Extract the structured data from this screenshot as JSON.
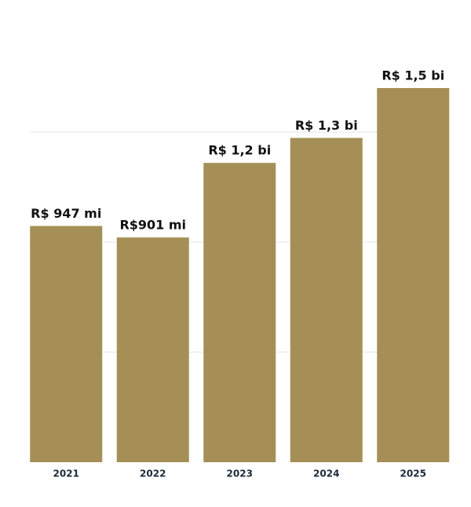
{
  "chart_data": {
    "type": "bar",
    "categories": [
      "2021",
      "2022",
      "2023",
      "2024",
      "2025"
    ],
    "values": [
      947,
      901,
      1200,
      1300,
      1500
    ],
    "value_labels": [
      "R$ 947 mi",
      "R$901 mi",
      "R$ 1,2 bi",
      "R$ 1,3 bi",
      "R$ 1,5 bi"
    ],
    "color": "#a68f57",
    "ylim": [
      0,
      1500
    ]
  }
}
